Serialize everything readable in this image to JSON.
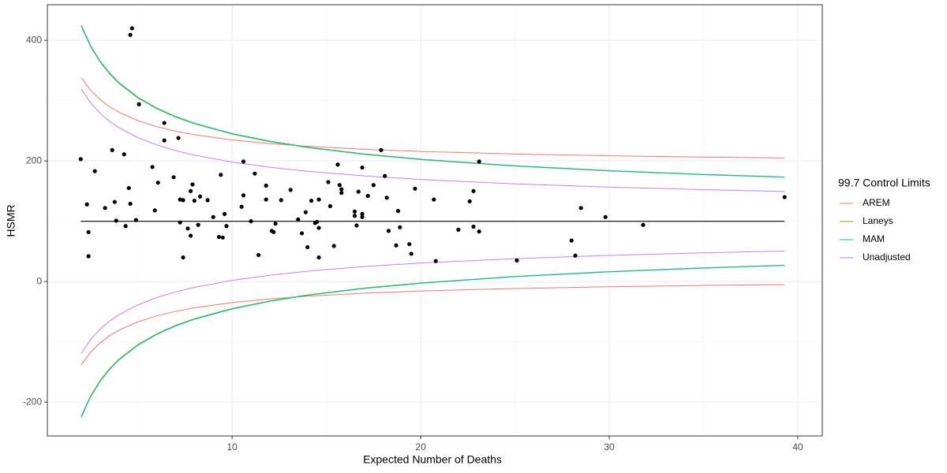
{
  "chart_data": {
    "type": "scatter",
    "xlabel": "Expected Number of Deaths",
    "ylabel": "HSMR",
    "xlim": [
      0.2,
      41.3
    ],
    "ylim": [
      -256,
      459
    ],
    "xticks": [
      10,
      20,
      30,
      40
    ],
    "yticks": [
      -200,
      0,
      200,
      400
    ],
    "minor_xticks": [
      5,
      15,
      25,
      35
    ],
    "minor_yticks": [
      -100,
      100,
      300
    ],
    "grid": true,
    "legend_title": "99.7 Control Limits",
    "legend": "right",
    "points": {
      "color": "#000000",
      "x": [
        1.97,
        2.3,
        2.38,
        2.38,
        2.72,
        3.26,
        3.64,
        3.77,
        3.85,
        4.27,
        4.35,
        4.52,
        4.6,
        4.6,
        4.69,
        4.9,
        5.06,
        5.77,
        5.9,
        6.07,
        6.4,
        6.4,
        6.9,
        7.15,
        7.24,
        7.24,
        7.4,
        7.4,
        7.65,
        7.8,
        7.8,
        7.9,
        8.0,
        8.2,
        8.3,
        8.7,
        9.0,
        9.3,
        9.4,
        9.5,
        9.6,
        9.7,
        10.5,
        10.6,
        10.6,
        11.0,
        11.2,
        11.4,
        11.8,
        11.8,
        12.1,
        12.2,
        12.3,
        12.6,
        13.1,
        13.5,
        13.7,
        13.9,
        14.0,
        14.2,
        14.4,
        14.5,
        14.6,
        14.6,
        14.6,
        15.1,
        15.2,
        15.4,
        15.6,
        15.7,
        15.8,
        15.8,
        16.5,
        16.5,
        16.6,
        16.7,
        16.9,
        16.9,
        16.9,
        17.2,
        17.5,
        17.9,
        18.1,
        18.2,
        18.3,
        18.7,
        18.8,
        18.9,
        19.4,
        19.5,
        19.7,
        20.7,
        20.8,
        22.0,
        22.6,
        22.8,
        22.8,
        23.1,
        23.1,
        25.1,
        28.0,
        28.2,
        28.5,
        29.8,
        31.8,
        39.3
      ],
      "values": [
        203,
        128,
        82,
        42,
        183,
        122,
        218,
        132,
        101,
        211,
        92,
        155,
        129,
        409,
        420,
        102,
        294,
        190,
        118,
        164,
        234,
        263,
        173,
        238,
        136,
        98,
        40,
        135,
        88,
        150,
        76,
        161,
        134,
        94,
        141,
        135,
        107,
        74,
        177,
        73,
        112,
        92,
        124,
        199,
        143,
        100,
        179,
        44,
        159,
        136,
        84,
        82,
        96,
        135,
        152,
        103,
        80,
        115,
        57,
        134,
        97,
        99,
        136,
        89,
        40,
        165,
        125,
        59,
        194,
        160,
        153,
        147,
        116,
        109,
        93,
        149,
        112,
        107,
        189,
        142,
        160,
        218,
        175,
        139,
        84,
        60,
        117,
        90,
        62,
        46,
        154,
        136,
        34,
        86,
        133,
        91,
        150,
        83,
        199,
        35,
        68,
        43,
        122,
        107,
        94,
        140
      ]
    },
    "center_line": {
      "color": "#000000",
      "x": [
        1.97,
        39.3
      ],
      "values": [
        100,
        100
      ]
    },
    "limits_x": [
      2,
      2.5,
      3,
      3.5,
      4,
      5,
      6,
      7,
      8,
      10,
      12,
      14,
      17,
      20,
      25,
      30,
      35,
      39.3
    ],
    "series": [
      {
        "name": "AREM",
        "color": "#F8766D",
        "upper": [
          338,
          316.9,
          301.6,
          289.9,
          280.6,
          266.8,
          256.9,
          249.4,
          243.5,
          234.9,
          228.8,
          224.3,
          219.3,
          215.7,
          211.5,
          208.6,
          206.4,
          205
        ],
        "lower": [
          -138,
          -116.9,
          -101.6,
          -89.9,
          -80.6,
          -66.8,
          -56.9,
          -49.4,
          -43.5,
          -34.9,
          -28.8,
          -24.3,
          -19.3,
          -15.7,
          -11.5,
          -8.6,
          -6.4,
          -5
        ]
      },
      {
        "name": "Laneys",
        "color": "#7CAE00",
        "upper": [
          423.2,
          389.1,
          363.9,
          344.3,
          328.5,
          304.4,
          286.6,
          272.7,
          261.6,
          244.5,
          231.9,
          222.1,
          210.8,
          202.2,
          191.4,
          183.4,
          177.2,
          172.9
        ],
        "lower": [
          -223.2,
          -189.1,
          -163.9,
          -144.3,
          -128.5,
          -104.4,
          -86.6,
          -72.7,
          -61.6,
          -44.5,
          -31.9,
          -22.1,
          -10.8,
          -2.2,
          8.6,
          16.6,
          22.8,
          27.1
        ]
      },
      {
        "name": "MAM",
        "color": "#00BFC4",
        "upper": [
          425.3,
          390.9,
          365.6,
          345.9,
          330,
          305.7,
          287.8,
          273.8,
          262.6,
          245.5,
          232.8,
          222.9,
          211.6,
          202.9,
          192,
          184,
          177.8,
          173.4
        ],
        "lower": [
          -225.3,
          -190.9,
          -165.6,
          -145.9,
          -130,
          -105.7,
          -87.8,
          -73.8,
          -62.6,
          -45.5,
          -32.8,
          -22.9,
          -11.6,
          -2.9,
          8,
          16,
          22.2,
          26.6
        ]
      },
      {
        "name": "Unadjusted",
        "color": "#C77CFF",
        "upper": [
          319.2,
          296.1,
          279,
          265.7,
          255,
          238.6,
          226.6,
          217.2,
          209.6,
          198,
          189.5,
          182.8,
          175.2,
          169.3,
          162,
          156.6,
          152.4,
          149.4
        ],
        "lower": [
          -119.2,
          -96.1,
          -79,
          -65.7,
          -55,
          -38.6,
          -26.6,
          -17.2,
          -9.6,
          2,
          10.5,
          17.2,
          24.8,
          30.7,
          38,
          43.4,
          47.6,
          50.6
        ]
      }
    ]
  }
}
